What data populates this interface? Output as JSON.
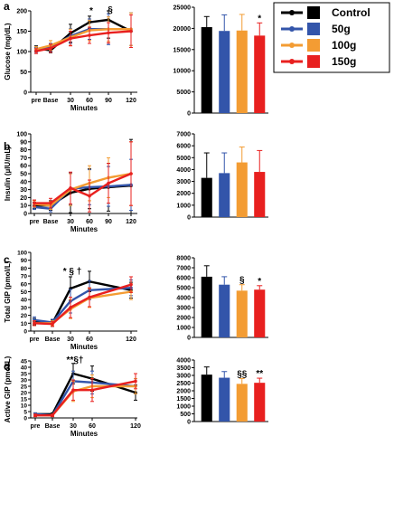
{
  "legend": {
    "items": [
      {
        "label": "Control",
        "color": "#000000"
      },
      {
        "label": "50g",
        "color": "#3355aa"
      },
      {
        "label": "100g",
        "color": "#f39c33"
      },
      {
        "label": "150g",
        "color": "#e8201f"
      }
    ]
  },
  "chart_data": [
    {
      "type": "line",
      "panel": "a",
      "ylabel": "Glucose (mg/dL)",
      "xlabel": "Minutes",
      "x": [
        "pre",
        "Base",
        "30",
        "60",
        "90",
        "120"
      ],
      "ylim": [
        0,
        200
      ],
      "yticks": [
        0,
        50,
        100,
        150,
        200
      ],
      "series": [
        {
          "name": "Control",
          "values": [
            108,
            103,
            145,
            172,
            178,
            150
          ],
          "err": [
            6,
            6,
            22,
            15,
            45,
            40
          ]
        },
        {
          "name": "50g",
          "values": [
            104,
            110,
            138,
            155,
            155,
            155
          ],
          "err": [
            6,
            10,
            18,
            25,
            38,
            40
          ]
        },
        {
          "name": "100g",
          "values": [
            106,
            115,
            135,
            152,
            155,
            155
          ],
          "err": [
            6,
            12,
            20,
            25,
            30,
            40
          ]
        },
        {
          "name": "150g",
          "values": [
            101,
            108,
            132,
            140,
            146,
            150
          ],
          "err": [
            6,
            10,
            18,
            20,
            25,
            40
          ]
        }
      ],
      "annotations": [
        {
          "x": "60",
          "text": "*"
        },
        {
          "x": "90",
          "text": "§"
        }
      ]
    },
    {
      "type": "bar",
      "panel": "a-auc",
      "categories": [
        "Control",
        "50g",
        "100g",
        "150g"
      ],
      "values": [
        20300,
        19400,
        19500,
        18300
      ],
      "err": [
        2500,
        3800,
        3800,
        3000
      ],
      "ylim": [
        0,
        25000
      ],
      "yticks": [
        0,
        5000,
        10000,
        15000,
        20000,
        25000
      ],
      "annotations": [
        "",
        "",
        "",
        "*"
      ]
    },
    {
      "type": "line",
      "panel": "b",
      "ylabel": "Insulin (µIU/mL)",
      "xlabel": "Minutes",
      "x": [
        "pre",
        "Base",
        "30",
        "60",
        "90",
        "120"
      ],
      "ylim": [
        0,
        100
      ],
      "yticks": [
        0,
        10,
        20,
        30,
        40,
        50,
        60,
        70,
        80,
        90,
        100
      ],
      "series": [
        {
          "name": "Control",
          "values": [
            10,
            10,
            26,
            31,
            33,
            35
          ],
          "err": [
            4,
            6,
            25,
            25,
            30,
            58
          ]
        },
        {
          "name": "50g",
          "values": [
            8,
            6,
            31,
            33,
            34,
            36
          ],
          "err": [
            3,
            4,
            20,
            22,
            25,
            32
          ]
        },
        {
          "name": "100g",
          "values": [
            12,
            10,
            30,
            38,
            45,
            50
          ],
          "err": [
            4,
            5,
            20,
            22,
            25,
            40
          ]
        },
        {
          "name": "150g",
          "values": [
            13,
            13,
            32,
            22,
            38,
            50
          ],
          "err": [
            4,
            6,
            20,
            20,
            25,
            40
          ]
        }
      ]
    },
    {
      "type": "bar",
      "panel": "b-auc",
      "categories": [
        "Control",
        "50g",
        "100g",
        "150g"
      ],
      "values": [
        3300,
        3700,
        4600,
        3800
      ],
      "err": [
        2100,
        1700,
        1300,
        1800
      ],
      "ylim": [
        0,
        7000
      ],
      "yticks": [
        0,
        1000,
        2000,
        3000,
        4000,
        5000,
        6000,
        7000
      ]
    },
    {
      "type": "line",
      "panel": "c",
      "ylabel": "Total GIP (pmol/L)",
      "xlabel": "Minutes",
      "x": [
        "pre",
        "Base",
        "30",
        "60",
        "120"
      ],
      "ylim": [
        0,
        100
      ],
      "yticks": [
        0,
        10,
        20,
        30,
        40,
        50,
        60,
        70,
        80,
        90,
        100
      ],
      "series": [
        {
          "name": "Control",
          "values": [
            12,
            10,
            54,
            63,
            52
          ],
          "err": [
            4,
            4,
            15,
            13,
            10
          ]
        },
        {
          "name": "50g",
          "values": [
            14,
            11,
            38,
            52,
            55
          ],
          "err": [
            4,
            4,
            15,
            12,
            10
          ]
        },
        {
          "name": "100g",
          "values": [
            10,
            10,
            28,
            42,
            50
          ],
          "err": [
            3,
            3,
            12,
            12,
            10
          ]
        },
        {
          "name": "150g",
          "values": [
            10,
            9,
            30,
            43,
            59
          ],
          "err": [
            3,
            3,
            13,
            12,
            10
          ]
        }
      ],
      "annotations": [
        {
          "x": "30",
          "text": "* § †"
        }
      ]
    },
    {
      "type": "bar",
      "panel": "c-auc",
      "categories": [
        "Control",
        "50g",
        "100g",
        "150g"
      ],
      "values": [
        6100,
        5300,
        4700,
        4800
      ],
      "err": [
        1100,
        800,
        600,
        400
      ],
      "ylim": [
        0,
        8000
      ],
      "yticks": [
        0,
        1000,
        2000,
        3000,
        4000,
        5000,
        6000,
        7000,
        8000
      ],
      "annotations": [
        "",
        "",
        "§",
        "*"
      ]
    },
    {
      "type": "line",
      "panel": "d",
      "ylabel": "Active GIP (pmol/L)",
      "xlabel": "Minutes",
      "x": [
        "pre",
        "Base",
        "30",
        "60",
        "120"
      ],
      "ylim": [
        0,
        45
      ],
      "yticks": [
        0,
        5,
        10,
        15,
        20,
        25,
        30,
        35,
        40,
        45
      ],
      "series": [
        {
          "name": "Control",
          "values": [
            3,
            3,
            35,
            31,
            20
          ],
          "err": [
            1,
            1,
            8,
            10,
            6
          ]
        },
        {
          "name": "50g",
          "values": [
            3,
            2,
            29,
            28,
            25
          ],
          "err": [
            1,
            1,
            8,
            9,
            6
          ]
        },
        {
          "name": "100g",
          "values": [
            2,
            2,
            21,
            25,
            25
          ],
          "err": [
            1,
            1,
            8,
            9,
            6
          ]
        },
        {
          "name": "150g",
          "values": [
            2,
            2,
            22,
            22,
            29
          ],
          "err": [
            1,
            1,
            8,
            9,
            6
          ]
        }
      ],
      "annotations": [
        {
          "x": "30",
          "text": "**§†"
        }
      ]
    },
    {
      "type": "bar",
      "panel": "d-auc",
      "categories": [
        "Control",
        "50g",
        "100g",
        "150g"
      ],
      "values": [
        3050,
        2850,
        2450,
        2520
      ],
      "err": [
        500,
        400,
        350,
        300
      ],
      "ylim": [
        0,
        4000
      ],
      "yticks": [
        0,
        500,
        1000,
        1500,
        2000,
        2500,
        3000,
        3500,
        4000
      ],
      "annotations": [
        "",
        "",
        "§§",
        "**"
      ]
    }
  ]
}
